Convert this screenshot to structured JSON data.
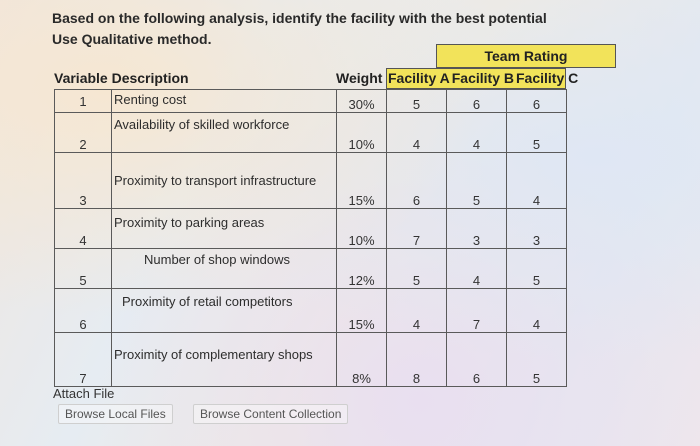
{
  "question": {
    "line1": "Based on the following analysis, identify the facility with the best potential",
    "line2": "Use Qualitative method."
  },
  "table": {
    "team_rating": "Team Rating",
    "col_variable": "Variable Description",
    "col_weight": "Weight",
    "col_fac_a": "Facility A",
    "col_fac_b": "Facility B",
    "col_fac_c": "Facility C",
    "rows": [
      {
        "num": "1",
        "desc": "Renting cost",
        "weight": "30%",
        "a": "5",
        "b": "6",
        "c": "6"
      },
      {
        "num": "2",
        "desc": "Availability of skilled workforce",
        "weight": "10%",
        "a": "4",
        "b": "4",
        "c": "5"
      },
      {
        "num": "3",
        "desc": "Proximity to transport infrastructure",
        "weight": "15%",
        "a": "6",
        "b": "5",
        "c": "4"
      },
      {
        "num": "4",
        "desc": "Proximity to parking areas",
        "weight": "10%",
        "a": "7",
        "b": "3",
        "c": "3"
      },
      {
        "num": "5",
        "desc": "Number of shop windows",
        "weight": "12%",
        "a": "5",
        "b": "4",
        "c": "5"
      },
      {
        "num": "6",
        "desc": "Proximity of retail competitors",
        "weight": "15%",
        "a": "4",
        "b": "7",
        "c": "4"
      },
      {
        "num": "7",
        "desc": "Proximity of complementary shops",
        "weight": "8%",
        "a": "8",
        "b": "6",
        "c": "5"
      }
    ]
  },
  "attach": {
    "label": "Attach File",
    "browse_local": "Browse Local Files",
    "browse_content": "Browse Content Collection"
  }
}
